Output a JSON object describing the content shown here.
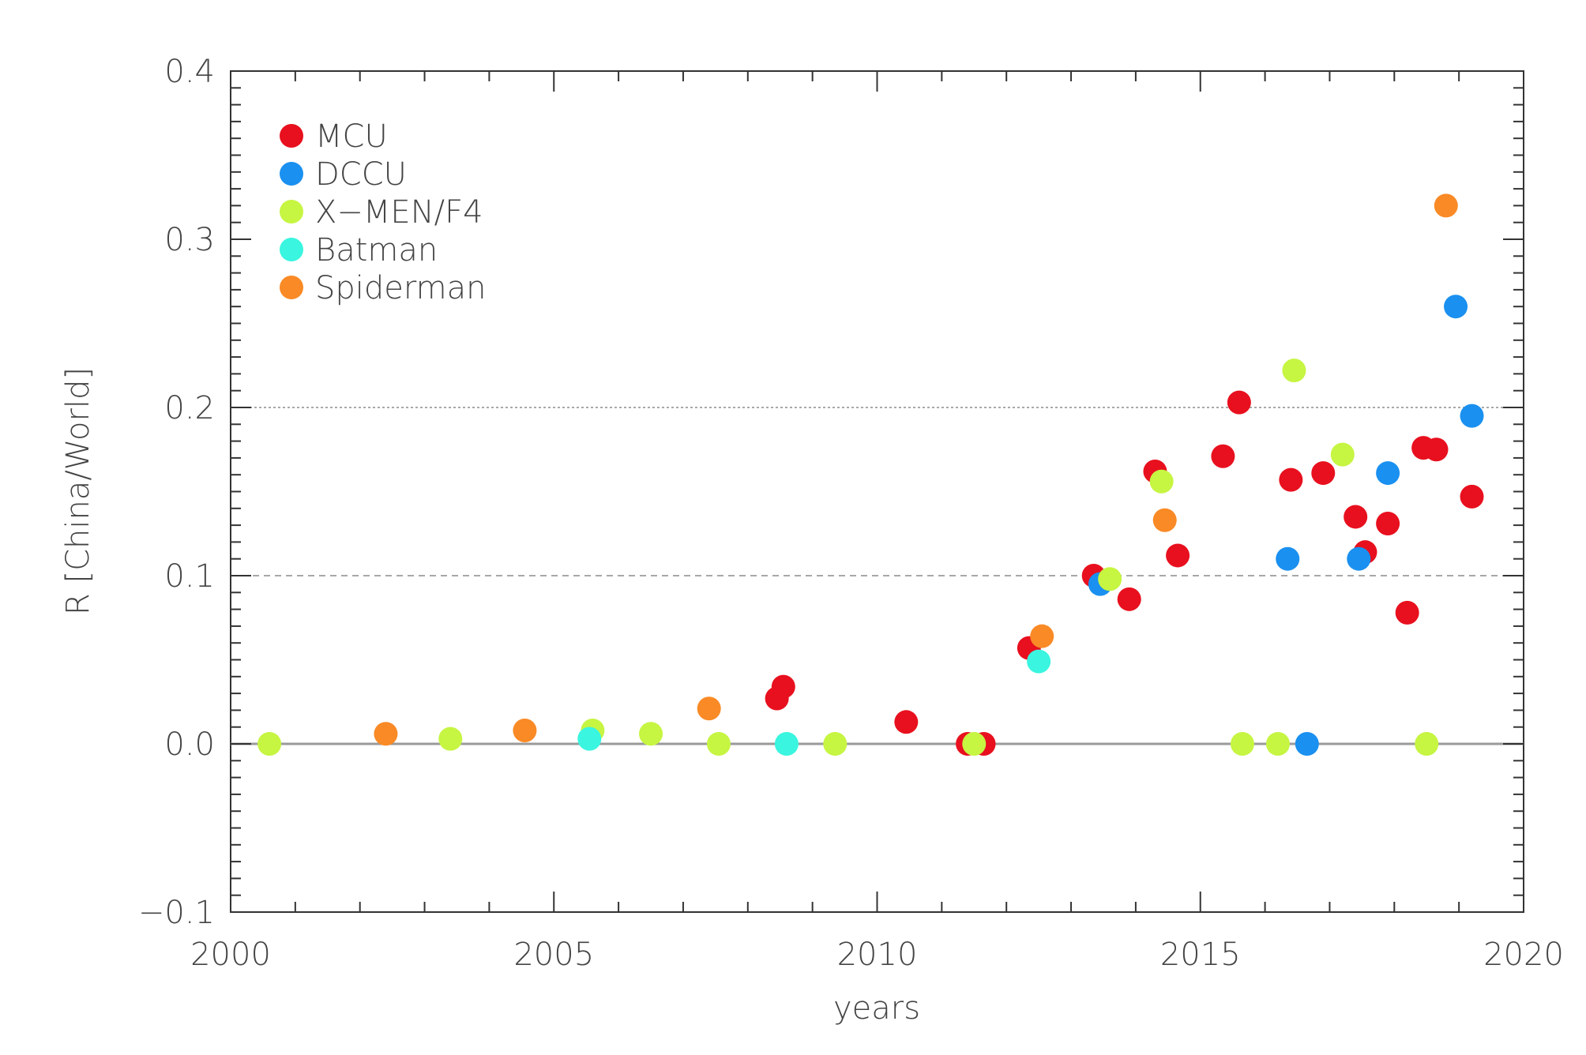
{
  "chart_data": {
    "type": "scatter",
    "xlabel": "years",
    "ylabel": "R [China/World]",
    "xlim": [
      2000,
      2020
    ],
    "ylim": [
      -0.1,
      0.4
    ],
    "xticks": [
      "2000",
      "2005",
      "2010",
      "2015",
      "2020"
    ],
    "yticks": [
      "−0.1",
      "0.0",
      "0.1",
      "0.2",
      "0.3",
      "0.4"
    ],
    "legend_position": "top-left",
    "reference_lines": [
      {
        "y": 0.0,
        "style": "solid"
      },
      {
        "y": 0.1,
        "style": "dashed"
      },
      {
        "y": 0.2,
        "style": "dotted"
      }
    ],
    "series": [
      {
        "name": "MCU",
        "color": "#e8101e",
        "points": [
          [
            2008.45,
            0.027
          ],
          [
            2008.55,
            0.034
          ],
          [
            2010.45,
            0.013
          ],
          [
            2011.4,
            0.0
          ],
          [
            2011.65,
            0.0
          ],
          [
            2012.35,
            0.057
          ],
          [
            2013.35,
            0.1
          ],
          [
            2013.9,
            0.086
          ],
          [
            2014.3,
            0.162
          ],
          [
            2014.65,
            0.112
          ],
          [
            2015.35,
            0.171
          ],
          [
            2015.6,
            0.203
          ],
          [
            2016.4,
            0.157
          ],
          [
            2016.9,
            0.161
          ],
          [
            2017.4,
            0.135
          ],
          [
            2017.55,
            0.114
          ],
          [
            2017.9,
            0.131
          ],
          [
            2018.2,
            0.078
          ],
          [
            2018.45,
            0.176
          ],
          [
            2018.65,
            0.175
          ],
          [
            2019.2,
            0.147
          ]
        ]
      },
      {
        "name": "DCCU",
        "color": "#1a90f0",
        "points": [
          [
            2013.45,
            0.095
          ],
          [
            2016.35,
            0.11
          ],
          [
            2016.65,
            0.0
          ],
          [
            2017.45,
            0.11
          ],
          [
            2017.9,
            0.161
          ],
          [
            2018.95,
            0.26
          ],
          [
            2019.2,
            0.195
          ]
        ]
      },
      {
        "name": "X−MEN/F4",
        "color": "#c6f542",
        "points": [
          [
            2000.6,
            0.0
          ],
          [
            2003.4,
            0.003
          ],
          [
            2005.6,
            0.008
          ],
          [
            2006.5,
            0.006
          ],
          [
            2007.55,
            0.0
          ],
          [
            2009.35,
            0.0
          ],
          [
            2011.5,
            0.0
          ],
          [
            2013.6,
            0.098
          ],
          [
            2014.4,
            0.156
          ],
          [
            2015.65,
            0.0
          ],
          [
            2016.2,
            0.0
          ],
          [
            2016.45,
            0.222
          ],
          [
            2017.2,
            0.172
          ],
          [
            2018.5,
            0.0
          ]
        ]
      },
      {
        "name": "Batman",
        "color": "#3af5df",
        "points": [
          [
            2005.55,
            0.003
          ],
          [
            2008.6,
            0.0
          ],
          [
            2012.5,
            0.049
          ]
        ]
      },
      {
        "name": "Spiderman",
        "color": "#f98a26",
        "points": [
          [
            2002.4,
            0.006
          ],
          [
            2004.55,
            0.008
          ],
          [
            2007.4,
            0.021
          ],
          [
            2012.55,
            0.064
          ],
          [
            2014.45,
            0.133
          ],
          [
            2018.8,
            0.32
          ]
        ]
      }
    ]
  }
}
